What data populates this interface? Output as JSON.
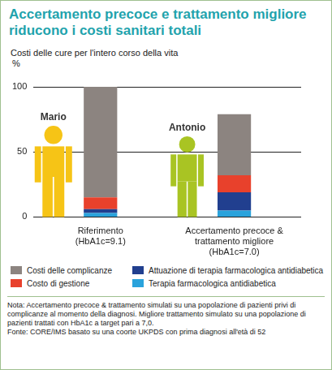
{
  "chart_data": {
    "type": "bar",
    "title": "Accertamento precoce e trattamento migliore riducono i costi sanitari totali",
    "subtitle": "Costi delle cure per l'intero corso della vita",
    "y_label": "%",
    "categories": [
      "Riferimento (HbA1c=9.1)",
      "Accertamento precoce & trattamento migliore (HbA1c=7.0)"
    ],
    "annotations": [
      "Mario",
      "Antonio"
    ],
    "series": [
      {
        "name": "Terapia farmacologica antidiabetica",
        "color": "#2aa3dc",
        "values": [
          3,
          5
        ]
      },
      {
        "name": "Attuazione di terapia farmacologica antidiabetica",
        "color": "#213f8f",
        "values": [
          3,
          14
        ]
      },
      {
        "name": "Costo di gestione",
        "color": "#e8412c",
        "values": [
          9,
          13
        ]
      },
      {
        "name": "Costi delle complicanze",
        "color": "#8c8480",
        "values": [
          85,
          47
        ]
      }
    ],
    "stacked": true,
    "ylim": [
      0,
      100
    ],
    "yticks": [
      0,
      50,
      100
    ],
    "grid": true,
    "legend": "bottom",
    "footnote": "Nota: Accertamento precoce & trattamento simulati su una popolazione di pazienti privi di complicanze al momento della diagnosi. Migliore trattamento simulato su una popolazione di pazienti trattati con HbA1c a target pari a 7,0.",
    "source": "Fonte: CORE/IMS basato su una coorte UKPDS con prima diagnosi all'età di 52"
  }
}
